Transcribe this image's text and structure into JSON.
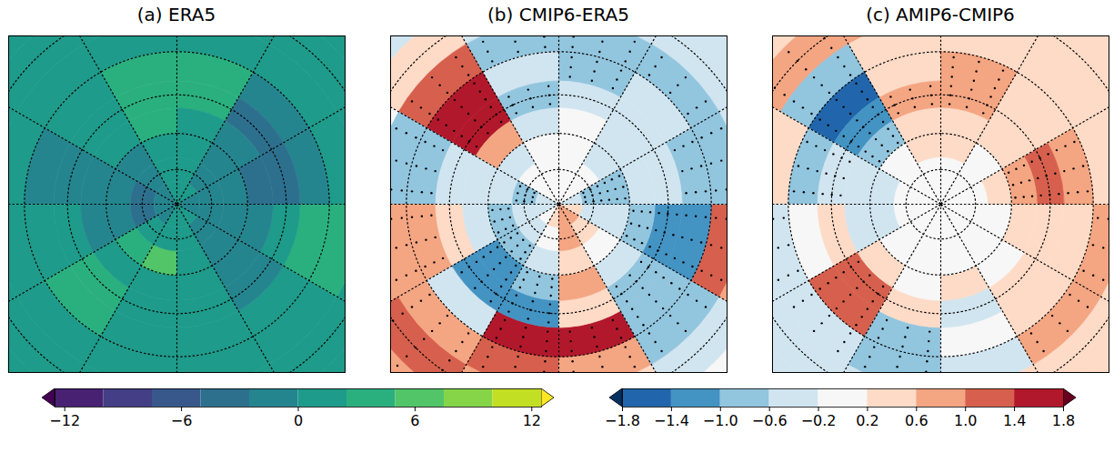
{
  "chart_data": {
    "type": "map",
    "lat": [
      5,
      15,
      25,
      35,
      45,
      55,
      65,
      75,
      85
    ],
    "lon": [
      -165,
      -135,
      -105,
      -75,
      -45,
      -15,
      15,
      45,
      75,
      105,
      135,
      165
    ],
    "colorbars": [
      {
        "zlim": [
          -12.5,
          12.5
        ],
        "levels": [
          -12.5,
          -10,
          -7.5,
          -5,
          -2.5,
          0,
          2.5,
          5,
          7.5,
          10,
          12.5
        ],
        "zticks": [
          {
            "value": -12,
            "label": "−12"
          },
          {
            "value": -6,
            "label": "−6"
          },
          0,
          6,
          12
        ],
        "colors": [
          "#440154",
          "#482173",
          "#433e85",
          "#38588c",
          "#2d708e",
          "#25858e",
          "#1e9b8a",
          "#2ab07f",
          "#52c569",
          "#86d549",
          "#c2df23",
          "#fde725"
        ],
        "panels": [
          {
            "title": "(a) ERA5",
            "values": [
              [
                1,
                1,
                1,
                1,
                1,
                1,
                1,
                1,
                1,
                1,
                1,
                1
              ],
              [
                1,
                1,
                1,
                0.5,
                1,
                1,
                0.5,
                1,
                1.5,
                1,
                1,
                1
              ],
              [
                2,
                1,
                1,
                0.5,
                1.5,
                1,
                0,
                1.5,
                2.5,
                1,
                0,
                1.5
              ],
              [
                3,
                1,
                -0.5,
                1,
                3.5,
                2,
                0,
                1,
                3,
                -1,
                -2.5,
                2.5
              ],
              [
                4,
                1,
                -1,
                0,
                4,
                2,
                0,
                -0.5,
                0,
                -3.5,
                -3,
                3
              ],
              [
                3,
                0,
                -1.5,
                -1,
                2,
                1,
                0,
                -1,
                -2,
                -3.5,
                -1,
                2
              ],
              [
                1,
                -1,
                -2.5,
                -1,
                3,
                6,
                0,
                -1,
                -2,
                -2,
                -1,
                1
              ],
              [
                0,
                -1,
                -3,
                -4,
                1,
                0,
                0,
                -1,
                -1,
                -1,
                -1,
                0
              ],
              [
                0,
                -1,
                -1.5,
                -2,
                -1,
                0,
                0,
                0,
                -0.5,
                -0.5,
                0,
                0
              ]
            ]
          }
        ]
      },
      {
        "zlim": [
          -1.8,
          1.8
        ],
        "levels": [
          -1.8,
          -1.4,
          -1.0,
          -0.6,
          -0.2,
          0.2,
          0.6,
          1.0,
          1.4,
          1.8
        ],
        "zticks": [
          {
            "value": -1.8,
            "label": "−1.8"
          },
          {
            "value": -1.4,
            "label": "−1.4"
          },
          {
            "value": -1.0,
            "label": "−1.0"
          },
          {
            "value": -0.6,
            "label": "−0.6"
          },
          {
            "value": -0.2,
            "label": "−0.2"
          },
          0.2,
          0.6,
          {
            "value": 1.0,
            "label": "1.0"
          },
          1.4,
          1.8
        ],
        "colors": [
          "#053061",
          "#2166ac",
          "#4393c3",
          "#92c5de",
          "#d1e5f0",
          "#f7f7f7",
          "#fddbc7",
          "#f4a582",
          "#d6604d",
          "#b2182b",
          "#67001f"
        ],
        "panels": [
          {
            "title": "(b) CMIP6-ERA5",
            "values": [
              [
                0,
                -0.4,
                0.2,
                0.6,
                0.8,
                0.6,
                0.4,
                0,
                -0.4,
                -0.6,
                -0.4,
                0
              ],
              [
                -0.4,
                0.4,
                0,
                0.6,
                1.0,
                0.8,
                0.4,
                -0.4,
                0.6,
                -0.6,
                -0.6,
                -0.4
              ],
              [
                -0.8,
                1.0,
                -0.8,
                0.8,
                0.8,
                1.2,
                0.8,
                -0.8,
                1.2,
                -0.8,
                -0.8,
                -0.8
              ],
              [
                -0.6,
                1.6,
                -1.0,
                0.8,
                -0.6,
                1.6,
                1.4,
                -1.0,
                -1.2,
                -0.8,
                -0.6,
                -0.8
              ],
              [
                -0.8,
                1.4,
                -0.6,
                0.4,
                -1.4,
                -1.2,
                0.4,
                -1.0,
                -1.2,
                -0.4,
                -0.4,
                -0.6
              ],
              [
                -0.4,
                0.6,
                -0.4,
                -0.6,
                -1.2,
                -0.8,
                0.6,
                -0.6,
                -0.8,
                -0.4,
                -0.6,
                -0.2
              ],
              [
                0,
                -0.4,
                -0.6,
                -1.0,
                -0.8,
                -0.4,
                0.4,
                -0.2,
                -0.6,
                -0.8,
                -0.4,
                0
              ],
              [
                0,
                -0.2,
                -0.8,
                -0.6,
                -0.4,
                0,
                0.6,
                0.4,
                -0.4,
                -0.8,
                -0.2,
                0
              ],
              [
                0,
                0,
                -0.4,
                -0.4,
                0,
                0.2,
                0.6,
                0.6,
                0.2,
                -0.4,
                0,
                0
              ]
            ],
            "stippled": [
              [
                0,
                0,
                0,
                0,
                1,
                0,
                0,
                0,
                0,
                0,
                0,
                0
              ],
              [
                0,
                0,
                0,
                0,
                1,
                1,
                0,
                0,
                0,
                0,
                0,
                0
              ],
              [
                1,
                1,
                1,
                1,
                1,
                1,
                1,
                1,
                1,
                1,
                1,
                1
              ],
              [
                0,
                1,
                1,
                1,
                0,
                1,
                1,
                1,
                1,
                1,
                0,
                1
              ],
              [
                1,
                1,
                0,
                0,
                1,
                1,
                0,
                1,
                1,
                0,
                0,
                0
              ],
              [
                0,
                0,
                0,
                0,
                1,
                1,
                0,
                0,
                1,
                0,
                0,
                0
              ],
              [
                0,
                0,
                0,
                1,
                1,
                0,
                0,
                0,
                0,
                1,
                0,
                0
              ],
              [
                0,
                0,
                1,
                0,
                0,
                0,
                0,
                0,
                0,
                1,
                0,
                0
              ],
              [
                0,
                0,
                0,
                0,
                0,
                0,
                0,
                0,
                0,
                0,
                0,
                0
              ]
            ]
          },
          {
            "title": "(c) AMIP6-CMIP6",
            "values": [
              [
                0.4,
                0.4,
                0.2,
                -0.2,
                -0.4,
                -0.2,
                0.2,
                0.4,
                0.4,
                0.4,
                0.2,
                0.2
              ],
              [
                0.6,
                0.6,
                0.4,
                -0.6,
                -0.4,
                -0.6,
                0.4,
                0.4,
                0.4,
                0.4,
                0.2,
                0.2
              ],
              [
                0.4,
                -0.8,
                0.4,
                -0.6,
                -0.6,
                -1.0,
                -0.4,
                0.6,
                0.6,
                0.4,
                0.4,
                0.2
              ],
              [
                0.2,
                -1.6,
                -0.8,
                -0.2,
                1.0,
                -0.8,
                -0.2,
                0.4,
                0.2,
                0.8,
                0.4,
                0.6
              ],
              [
                0.6,
                -1.4,
                -0.6,
                0.4,
                1.2,
                0.2,
                -0.4,
                0.2,
                0.2,
                1.0,
                0.4,
                0.8
              ],
              [
                0.4,
                -0.8,
                -0.4,
                -0.4,
                0.4,
                0,
                0.2,
                0,
                0.4,
                0.6,
                0.2,
                0.4
              ],
              [
                0.2,
                -0.2,
                -0.6,
                -0.6,
                0,
                0,
                0,
                0,
                0,
                0.2,
                0,
                0.2
              ],
              [
                0,
                0,
                -0.2,
                -0.2,
                0,
                0,
                0,
                0,
                0,
                0,
                0,
                0
              ],
              [
                0,
                0,
                0,
                0,
                0,
                0,
                0,
                0,
                0,
                0,
                0,
                0
              ]
            ],
            "stippled": [
              [
                0,
                0,
                0,
                0,
                0,
                0,
                0,
                0,
                0,
                0,
                0,
                0
              ],
              [
                1,
                1,
                0,
                1,
                0,
                1,
                0,
                0,
                0,
                0,
                0,
                0
              ],
              [
                0,
                1,
                0,
                1,
                1,
                1,
                0,
                1,
                1,
                0,
                0,
                0
              ],
              [
                0,
                1,
                1,
                0,
                1,
                1,
                0,
                0,
                0,
                1,
                0,
                1
              ],
              [
                1,
                1,
                1,
                0,
                1,
                0,
                0,
                0,
                0,
                1,
                0,
                1
              ],
              [
                0,
                1,
                0,
                0,
                0,
                0,
                0,
                0,
                0,
                1,
                0,
                0
              ],
              [
                0,
                0,
                0,
                0,
                0,
                0,
                0,
                0,
                0,
                0,
                0,
                0
              ],
              [
                0,
                0,
                0,
                0,
                0,
                0,
                0,
                0,
                0,
                0,
                0,
                0
              ],
              [
                0,
                0,
                0,
                0,
                0,
                0,
                0,
                0,
                0,
                0,
                0,
                0
              ]
            ]
          }
        ]
      }
    ]
  }
}
